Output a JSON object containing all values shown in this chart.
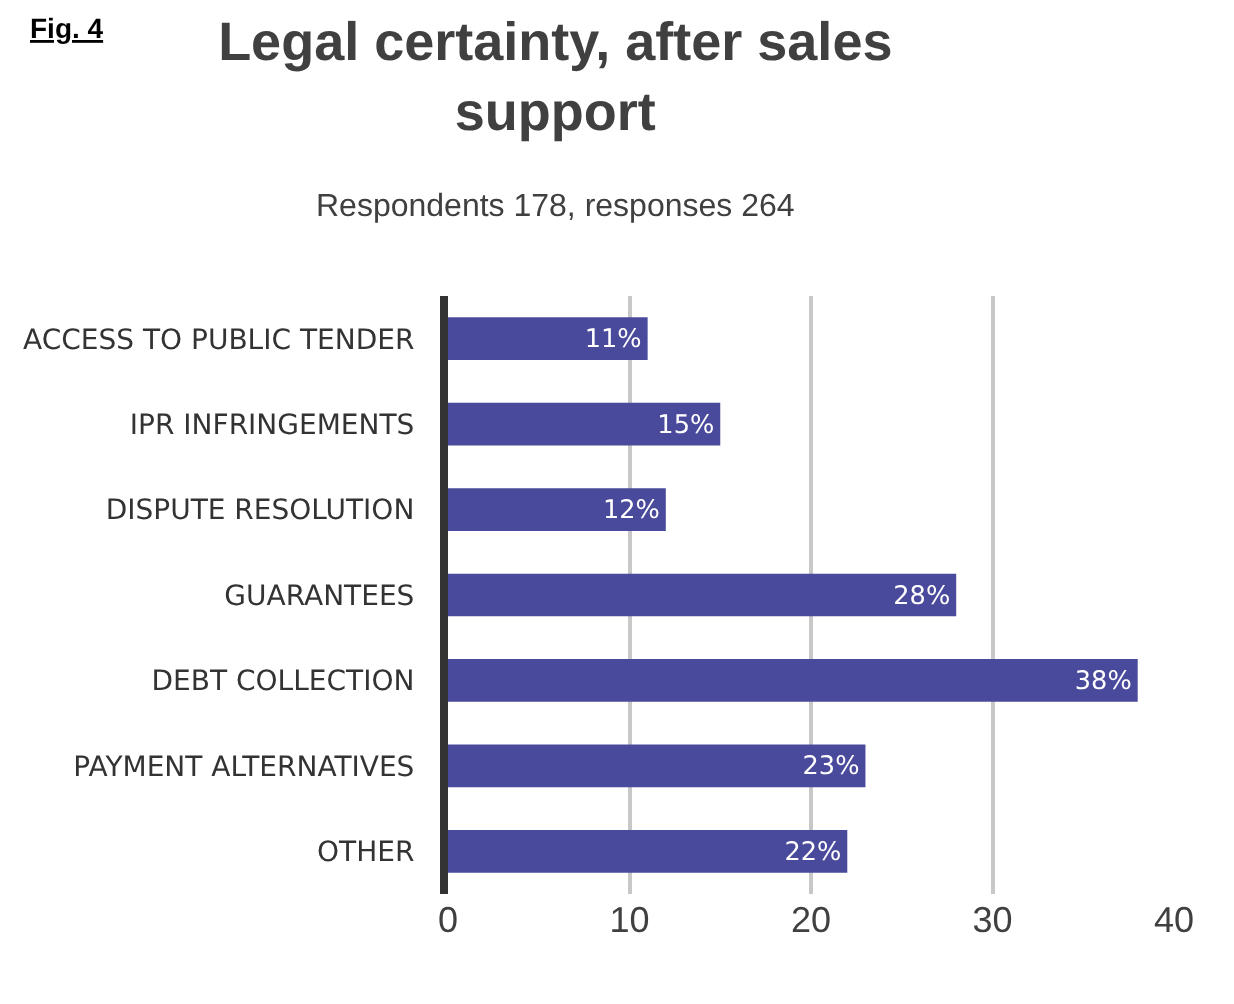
{
  "chart_data": {
    "type": "bar",
    "orientation": "horizontal",
    "title": "Legal certainty, after sales support",
    "subtitle": "Respondents 178, responses 264",
    "annotations": [
      "Fig. 4"
    ],
    "categories": [
      "ACCESS TO PUBLIC TENDER",
      "IPR INFRINGEMENTS",
      "DISPUTE RESOLUTION",
      "GUARANTEES",
      "DEBT COLLECTION",
      "PAYMENT ALTERNATIVES",
      "OTHER"
    ],
    "values": [
      11,
      15,
      12,
      28,
      38,
      23,
      22
    ],
    "value_labels": [
      "11%",
      "15%",
      "12%",
      "28%",
      "38%",
      "23%",
      "22%"
    ],
    "color": "#4a4a9c",
    "xlim": [
      0,
      40
    ],
    "xticks": [
      0,
      10,
      20,
      30,
      40
    ],
    "grid": "x"
  }
}
